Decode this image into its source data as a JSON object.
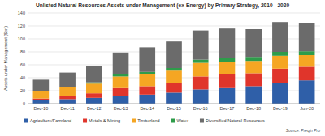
{
  "chart_data": {
    "type": "bar",
    "stacked": true,
    "title": "Unlisted Natural Resources Assets under Management (ex-Energy) by Primary Strategy, 2010 - 2020",
    "y_label": "Assets under Management ($bn)",
    "source": "Source: Preqin Pro",
    "categories": [
      "Dec-10",
      "Dec-11",
      "Dec-12",
      "Dec-13",
      "Dec-14",
      "Dec-15",
      "Dec-16",
      "Dec-17",
      "Dec-18",
      "Dec-19",
      "Jun-20"
    ],
    "series": [
      {
        "name": "Agriculture/Farmland",
        "color": "#2f5fa8",
        "values": [
          5,
          7,
          9,
          12,
          14,
          17,
          22,
          24,
          27,
          32,
          36
        ]
      },
      {
        "name": "Metals & Mining",
        "color": "#e0352b",
        "values": [
          3,
          5,
          7,
          12,
          13,
          15,
          20,
          21,
          20,
          22,
          21
        ]
      },
      {
        "name": "Timberland",
        "color": "#f5a623",
        "values": [
          11,
          13,
          15,
          18,
          19,
          19,
          21,
          20,
          19,
          20,
          18
        ]
      },
      {
        "name": "Water",
        "color": "#2e9c4a",
        "values": [
          1,
          1,
          2,
          3,
          3,
          4,
          5,
          5,
          5,
          6,
          6
        ]
      },
      {
        "name": "Diversified Natural Resources",
        "color": "#6b6b6b",
        "values": [
          17,
          22,
          25,
          34,
          38,
          41,
          45,
          46,
          44,
          46,
          44
        ]
      }
    ],
    "ylim": [
      0,
      140
    ],
    "yticks": [
      0,
      20,
      40,
      60,
      80,
      100,
      120,
      140
    ],
    "grid": true,
    "legend": "bottom"
  }
}
